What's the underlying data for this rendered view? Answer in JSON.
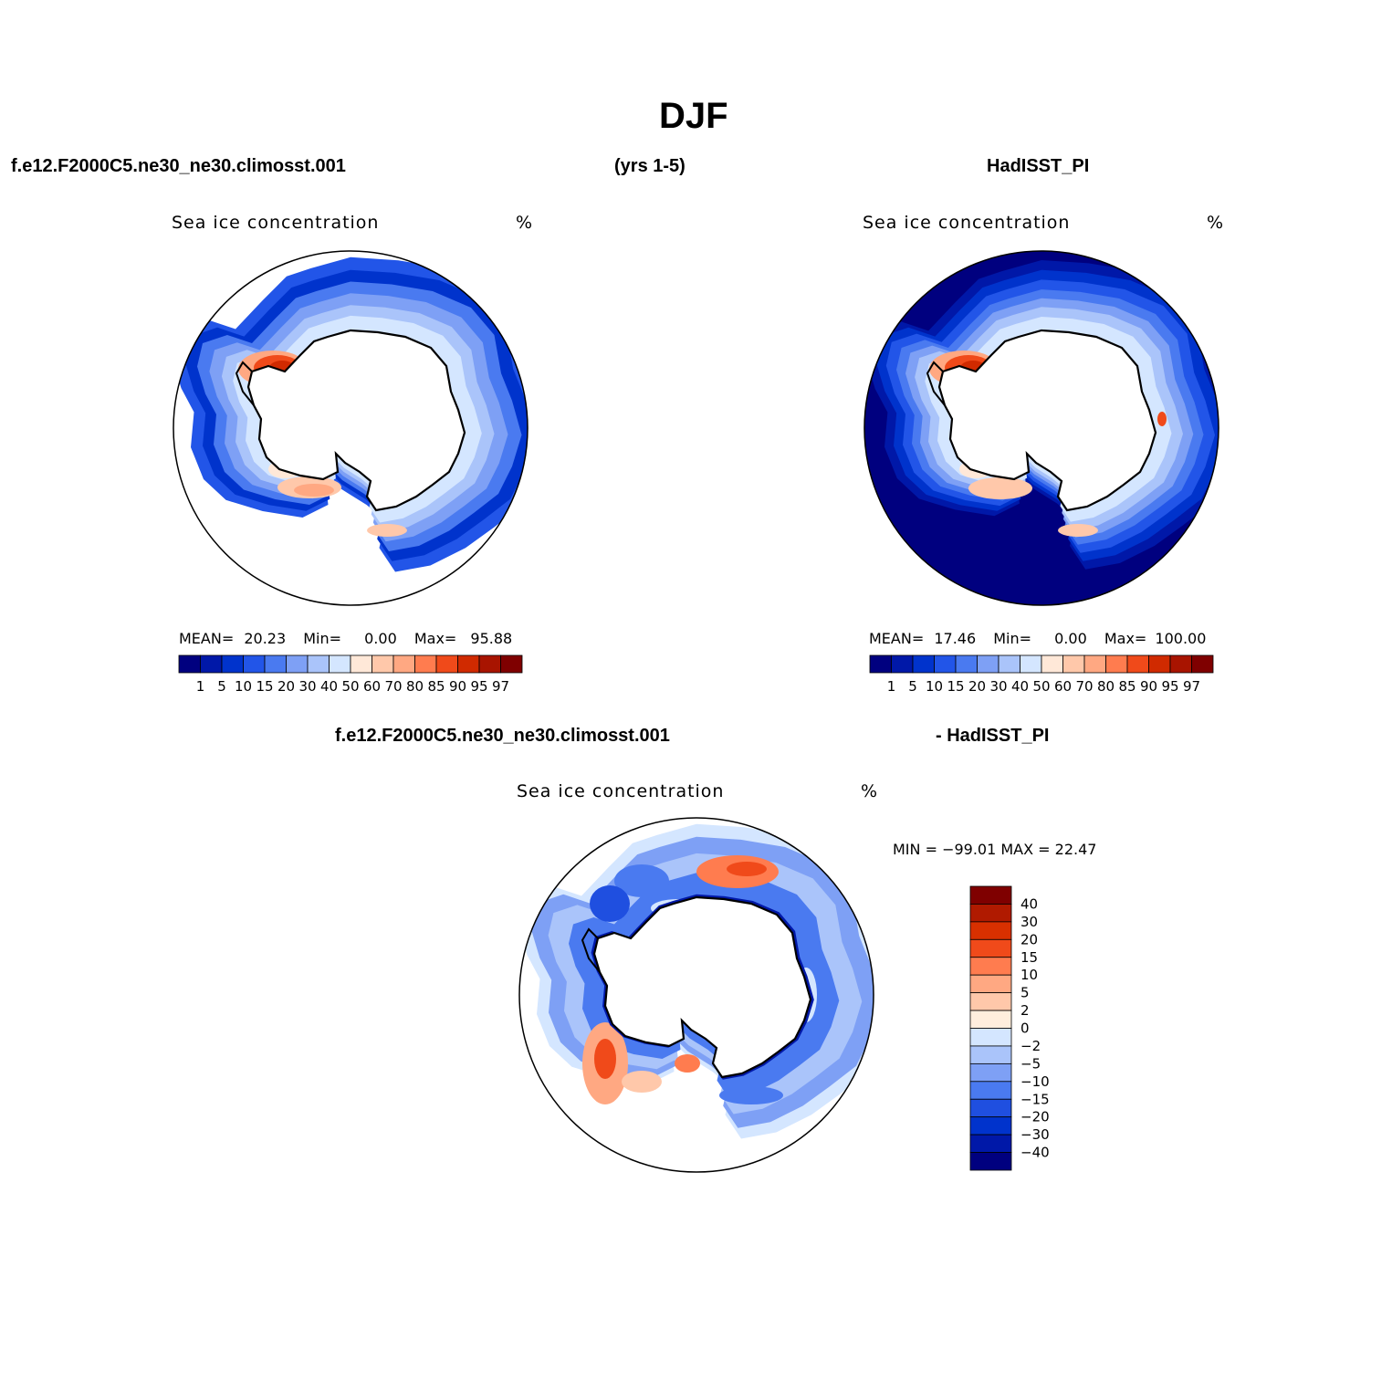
{
  "figure": {
    "title": "DJF",
    "left_header": "f.e12.F2000C5.ne30_ne30.climosst.001",
    "center_header": "(yrs 1-5)",
    "right_header": "HadISST_PI",
    "diff_header_left": "f.e12.F2000C5.ne30_ne30.climosst.001",
    "diff_header_right": "- HadISST_PI"
  },
  "panels": {
    "model": {
      "label": "Sea ice concentration",
      "units": "%",
      "mean_label": "MEAN=",
      "mean_value": "20.23",
      "min_label": "Min=",
      "min_value": "0.00",
      "max_label": "Max=",
      "max_value": "95.88"
    },
    "obs": {
      "label": "Sea ice concentration",
      "units": "%",
      "mean_label": "MEAN=",
      "mean_value": "17.46",
      "min_label": "Min=",
      "min_value": "0.00",
      "max_label": "Max=",
      "max_value": "100.00"
    },
    "diff": {
      "label": "Sea ice concentration",
      "units": "%",
      "stats_text": "MIN = −99.01 MAX =  22.47"
    }
  },
  "chart_data": {
    "type": "heatmap",
    "projection": "south polar stereographic",
    "levels_abs": [
      "1",
      "5",
      "10",
      "15",
      "20",
      "30",
      "40",
      "50",
      "60",
      "70",
      "80",
      "85",
      "90",
      "95",
      "97"
    ],
    "colors_abs": [
      "#00007f",
      "#0018a8",
      "#0033cc",
      "#2255e8",
      "#4a7af0",
      "#7ea0f5",
      "#aac4fa",
      "#d4e6ff",
      "#ffe8d8",
      "#ffc8aa",
      "#ffa882",
      "#ff7c4f",
      "#f04a1a",
      "#d02a00",
      "#a81400",
      "#7f0000"
    ],
    "levels_diff": [
      "40",
      "30",
      "20",
      "15",
      "10",
      "5",
      "2",
      "0",
      "−2",
      "−5",
      "−10",
      "−15",
      "−20",
      "−30",
      "−40"
    ],
    "colors_diff": [
      "#7f0000",
      "#b01a00",
      "#d83000",
      "#f04a1a",
      "#ff7c4f",
      "#ffa882",
      "#ffc8aa",
      "#ffeedd",
      "#d4e6ff",
      "#aac4fa",
      "#7ea0f5",
      "#4a7af0",
      "#1f4fe0",
      "#0033cc",
      "#0018a8",
      "#00007f"
    ],
    "accent_colors": {
      "ocean_obs": "#00007f",
      "land": "#ffffff",
      "coast": "#000000"
    }
  }
}
